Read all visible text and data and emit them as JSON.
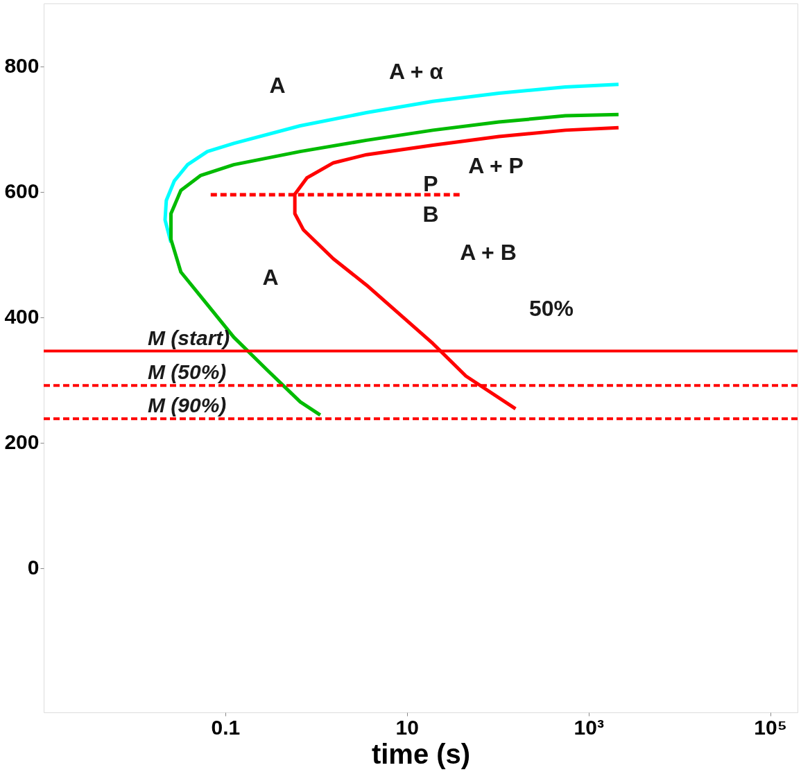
{
  "chart_data": {
    "type": "line",
    "xlabel": "time (s)",
    "log": "x",
    "xlim": [
      0.001,
      200000
    ],
    "ylim": [
      -230,
      900
    ],
    "xticks": [
      0.1,
      10,
      {
        "value": 1000,
        "label": "10³"
      },
      {
        "value": 100000,
        "label": "10⁵"
      }
    ],
    "yticks": [
      0,
      200,
      400,
      600,
      800
    ],
    "grid": false,
    "marker": "none",
    "series": [
      {
        "color": "#00ffff",
        "line_style": "solid",
        "x": [
          2138,
          556,
          103,
          19.3,
          3.59,
          0.668,
          0.124,
          0.0635,
          0.0384,
          0.0274,
          0.0224,
          0.0217,
          0.0252
        ],
        "values": [
          771,
          767,
          757,
          744,
          726,
          705,
          677,
          664,
          643,
          617,
          586,
          555,
          519
        ]
      },
      {
        "color": "#00bb00",
        "line_style": "solid",
        "x": [
          2138,
          556,
          103,
          19.3,
          3.59,
          0.668,
          0.124,
          0.0537,
          0.0324,
          0.0252,
          0.0252,
          0.0324,
          0.0635,
          0.124,
          0.288,
          0.668,
          1.11
        ],
        "values": [
          723,
          721,
          711,
          698,
          682,
          664,
          643,
          626,
          602,
          565,
          524,
          472,
          420,
          368,
          316,
          265,
          244
        ]
      },
      {
        "color": "#ff0000",
        "line_style": "solid",
        "x": [
          2138,
          556,
          103,
          19.3,
          3.59,
          1.55,
          0.791,
          0.583,
          0.583,
          0.726,
          1.55,
          3.59,
          19.3,
          44.7,
          157
        ],
        "values": [
          702,
          698,
          688,
          674,
          659,
          646,
          622,
          596,
          565,
          539,
          493,
          451,
          358,
          306,
          254
        ]
      },
      {
        "color": "#ff0000",
        "line_style": "dashed",
        "x": [
          0.069,
          38
        ],
        "values": [
          595,
          595
        ]
      }
    ],
    "ref_lines": [
      {
        "axis": "y",
        "value": 346,
        "label": "M (start)",
        "color": "#ff0000",
        "line_style": "solid"
      },
      {
        "axis": "y",
        "value": 291,
        "label": "M (50%)",
        "color": "#ff0000",
        "line_style": "dashed"
      },
      {
        "axis": "y",
        "value": 238,
        "label": "M (90%)",
        "color": "#ff0000",
        "line_style": "dashed"
      }
    ],
    "annotations": [
      "A",
      "A + α",
      "A + P",
      "P",
      "B",
      "A + B",
      "A",
      "50%"
    ]
  }
}
